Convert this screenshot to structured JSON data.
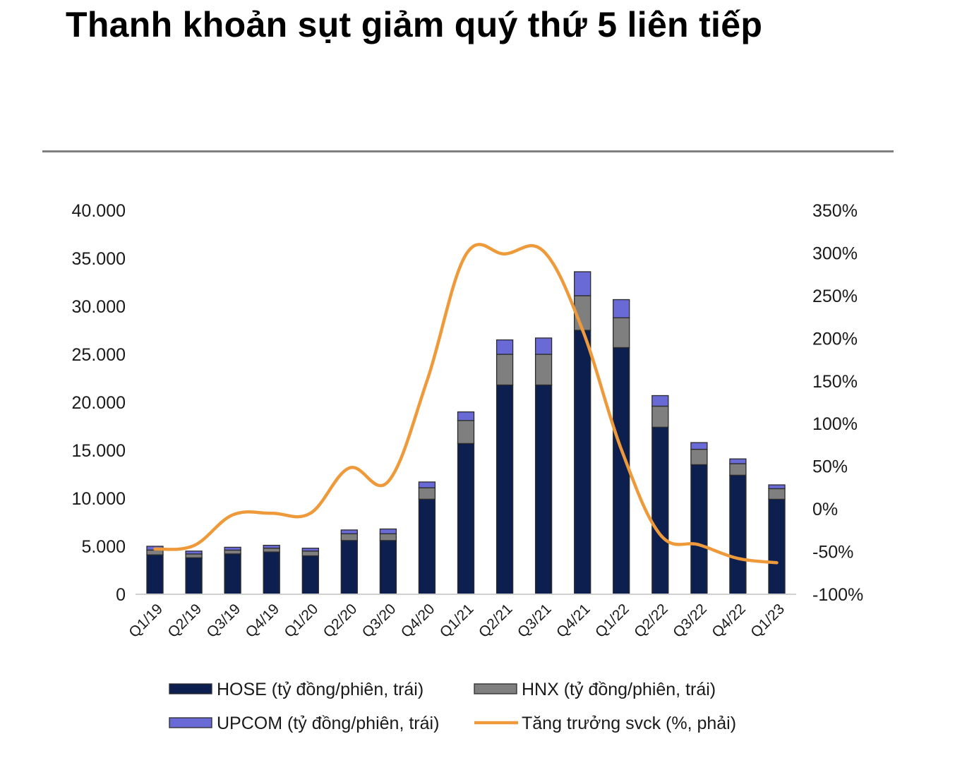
{
  "page": {
    "title": "Thanh khoản sụt giảm quý thứ 5 liên tiếp"
  },
  "chart_data": {
    "type": "bar",
    "stacked": true,
    "categories": [
      "Q1/19",
      "Q2/19",
      "Q3/19",
      "Q4/19",
      "Q1/20",
      "Q2/20",
      "Q3/20",
      "Q4/20",
      "Q1/21",
      "Q2/21",
      "Q3/21",
      "Q4/21",
      "Q1/22",
      "Q2/22",
      "Q3/22",
      "Q4/22",
      "Q1/23"
    ],
    "series": [
      {
        "name": "HOSE (tỷ đồng/phiên, trái)",
        "kind": "bar",
        "axis": "left",
        "color": "#0d1f4f",
        "values": [
          4100,
          3800,
          4200,
          4400,
          4000,
          5600,
          5600,
          9900,
          15700,
          21800,
          21800,
          27500,
          25700,
          17400,
          13500,
          12400,
          9900
        ]
      },
      {
        "name": "HNX (tỷ đồng/phiên, trái)",
        "kind": "bar",
        "axis": "left",
        "color": "#7f7f7f",
        "values": [
          500,
          400,
          400,
          400,
          500,
          700,
          700,
          1200,
          2400,
          3200,
          3200,
          3600,
          3100,
          2200,
          1600,
          1200,
          1100
        ]
      },
      {
        "name": "UPCOM (tỷ đồng/phiên, trái)",
        "kind": "bar",
        "axis": "left",
        "color": "#6a6ad6",
        "values": [
          400,
          300,
          300,
          300,
          300,
          400,
          500,
          600,
          900,
          1500,
          1700,
          2500,
          1900,
          1100,
          700,
          500,
          400
        ]
      },
      {
        "name": "Tăng trưởng svck (%, phải)",
        "kind": "line",
        "axis": "right",
        "color": "#ee9a3a",
        "values": [
          -47,
          -43,
          -7,
          -5,
          -5,
          48,
          32,
          150,
          298,
          299,
          302,
          210,
          70,
          -30,
          -42,
          -58,
          -63
        ]
      }
    ],
    "y_left": {
      "ticks": [
        "40.000",
        "35.000",
        "30.000",
        "25.000",
        "20.000",
        "15.000",
        "10.000",
        "5.000",
        "0"
      ],
      "min": 0,
      "max": 40000
    },
    "y_right": {
      "ticks": [
        "350%",
        "300%",
        "250%",
        "200%",
        "150%",
        "100%",
        "50%",
        "0%",
        "-50%",
        "-100%"
      ],
      "min": -100,
      "max": 350
    },
    "grid": false,
    "legend_position": "bottom"
  }
}
